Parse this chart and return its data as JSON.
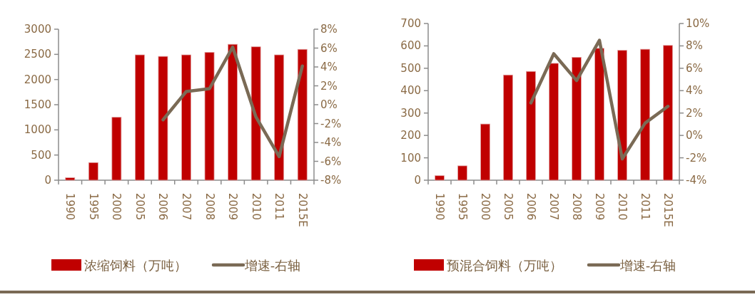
{
  "chart_data": [
    {
      "type": "bar",
      "categories": [
        "1990",
        "1995",
        "2000",
        "2005",
        "2006",
        "2007",
        "2008",
        "2009",
        "2010",
        "2011",
        "2015E"
      ],
      "series": [
        {
          "name": "浓缩饲料（万吨）",
          "color": "#c00000",
          "values": [
            50,
            350,
            1250,
            2490,
            2460,
            2490,
            2540,
            2700,
            2650,
            2490,
            2600
          ]
        },
        {
          "name": "增速-右轴",
          "type": "line",
          "axis": "y2",
          "color": "#7a6a55",
          "values": [
            null,
            null,
            null,
            null,
            -1.6,
            1.4,
            1.7,
            6.1,
            -1.3,
            -5.5,
            4.1
          ]
        }
      ],
      "ylim": [
        0,
        3000
      ],
      "yticks": [
        0,
        500,
        1000,
        1500,
        2000,
        2500,
        3000
      ],
      "y2lim": [
        -8,
        8
      ],
      "y2ticks": [
        {
          "value": -8,
          "label": "-8%"
        },
        {
          "value": -6,
          "label": "-6%"
        },
        {
          "value": -4,
          "label": "-4%"
        },
        {
          "value": -2,
          "label": "-2%"
        },
        {
          "value": 0,
          "label": "0%"
        },
        {
          "value": 2,
          "label": "2%"
        },
        {
          "value": 4,
          "label": "4%"
        },
        {
          "value": 6,
          "label": "6%"
        },
        {
          "value": 8,
          "label": "8%"
        }
      ],
      "legend": "bottom"
    },
    {
      "type": "bar",
      "categories": [
        "1990",
        "1995",
        "2000",
        "2005",
        "2006",
        "2007",
        "2008",
        "2009",
        "2010",
        "2011",
        "2015E"
      ],
      "series": [
        {
          "name": "预混合饲料（万吨）",
          "color": "#c00000",
          "values": [
            20,
            64,
            251,
            470,
            486,
            522,
            549,
            589,
            580,
            585,
            602
          ]
        },
        {
          "name": "增速-右轴",
          "type": "line",
          "axis": "y2",
          "color": "#7a6a55",
          "values": [
            null,
            null,
            null,
            null,
            2.9,
            7.3,
            4.9,
            8.5,
            -2.1,
            1.1,
            2.6
          ]
        }
      ],
      "ylim": [
        0,
        700
      ],
      "yticks": [
        0,
        100,
        200,
        300,
        400,
        500,
        600,
        700
      ],
      "y2lim": [
        -4,
        10
      ],
      "y2ticks": [
        {
          "value": -4,
          "label": "-4%"
        },
        {
          "value": -2,
          "label": "-2%"
        },
        {
          "value": 0,
          "label": "0%"
        },
        {
          "value": 2,
          "label": "2%"
        },
        {
          "value": 4,
          "label": "4%"
        },
        {
          "value": 6,
          "label": "6%"
        },
        {
          "value": 8,
          "label": "8%"
        },
        {
          "value": 10,
          "label": "10%"
        }
      ],
      "legend": "bottom"
    }
  ]
}
